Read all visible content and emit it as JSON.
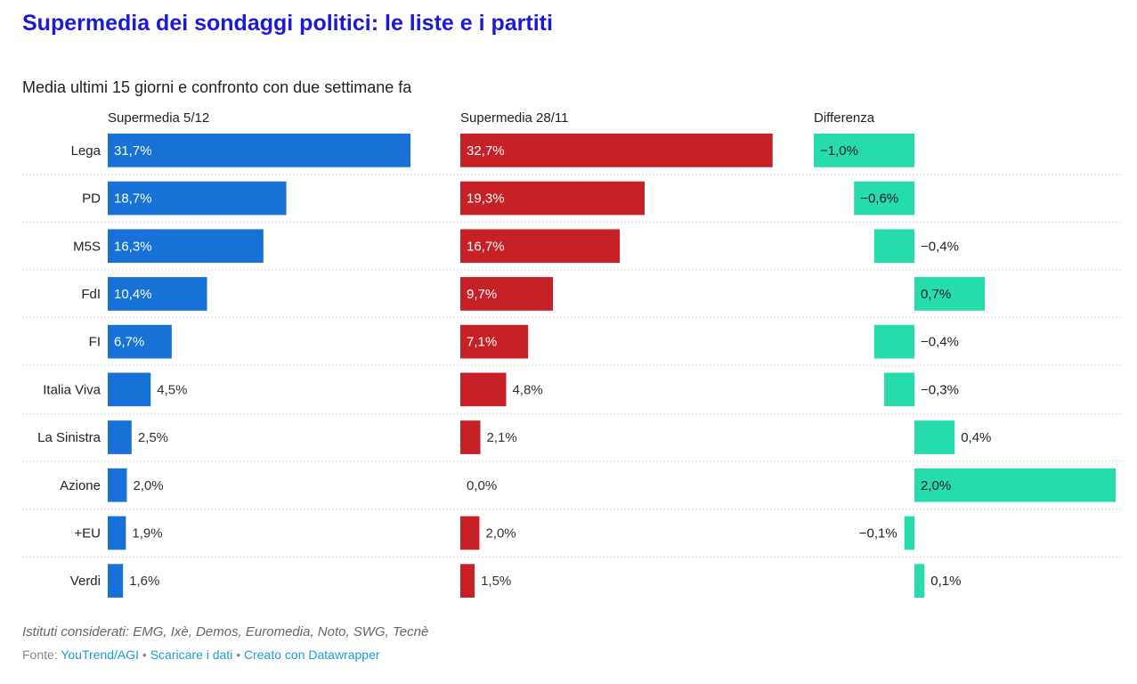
{
  "title": "Supermedia dei sondaggi politici: le liste e i partiti",
  "subtitle": "Media ultimi 15 giorni e confronto con due settimane fa",
  "chart_data": {
    "type": "bar",
    "categories": [
      "Lega",
      "PD",
      "M5S",
      "FdI",
      "FI",
      "Italia Viva",
      "La Sinistra",
      "Azione",
      "+EU",
      "Verdi"
    ],
    "series": [
      {
        "name": "Supermedia 5/12",
        "color": "#1771d6",
        "values": [
          31.7,
          18.7,
          16.3,
          10.4,
          6.7,
          4.5,
          2.5,
          2.0,
          1.9,
          1.6
        ],
        "labels": [
          "31,7%",
          "18,7%",
          "16,3%",
          "10,4%",
          "6,7%",
          "4,5%",
          "2,5%",
          "2,0%",
          "1,9%",
          "1,6%"
        ]
      },
      {
        "name": "Supermedia 28/11",
        "color": "#c62127",
        "values": [
          32.7,
          19.3,
          16.7,
          9.7,
          7.1,
          4.8,
          2.1,
          0.0,
          2.0,
          1.5
        ],
        "labels": [
          "32,7%",
          "19,3%",
          "16,7%",
          "9,7%",
          "7,1%",
          "4,8%",
          "2,1%",
          "0,0%",
          "2,0%",
          "1,5%"
        ]
      },
      {
        "name": "Differenza",
        "color": "#26dbac",
        "values": [
          -1.0,
          -0.6,
          -0.4,
          0.7,
          -0.4,
          -0.3,
          0.4,
          2.0,
          -0.1,
          0.1
        ],
        "labels": [
          "−1,0%",
          "−0,6%",
          "−0,4%",
          "0,7%",
          "−0,4%",
          "−0,3%",
          "0,4%",
          "2,0%",
          "−0,1%",
          "0,1%"
        ]
      }
    ]
  },
  "notes": "Istituti considerati: EMG, Ixè, Demos, Euromedia, Noto, SWG, Tecnè",
  "footer": {
    "source_label": "Fonte:",
    "source_link": "YouTrend/AGI",
    "separator": "•",
    "download_link": "Scaricare i dati",
    "credit_link": "Creato con Datawrapper"
  }
}
